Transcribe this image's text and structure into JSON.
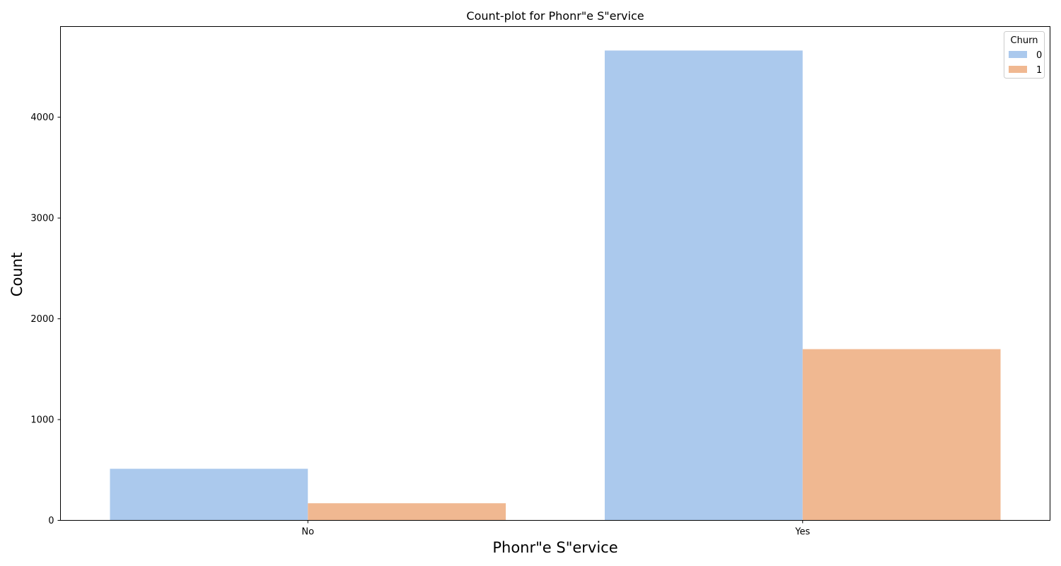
{
  "chart_data": {
    "type": "bar",
    "title": "Count-plot for Phonr\"e S\"ervice",
    "xlabel": "Phonr\"e S\"ervice",
    "ylabel": "Count",
    "categories": [
      "No",
      "Yes"
    ],
    "series": [
      {
        "name": "0",
        "values": [
          512,
          4662
        ],
        "color": "#abc9ed"
      },
      {
        "name": "1",
        "values": [
          170,
          1699
        ],
        "color": "#f0b891"
      }
    ],
    "ylim": [
      0,
      4900
    ],
    "yticks": [
      0,
      1000,
      2000,
      3000,
      4000
    ],
    "grid": false,
    "legend": {
      "title": "Churn",
      "position": "top-right"
    }
  }
}
